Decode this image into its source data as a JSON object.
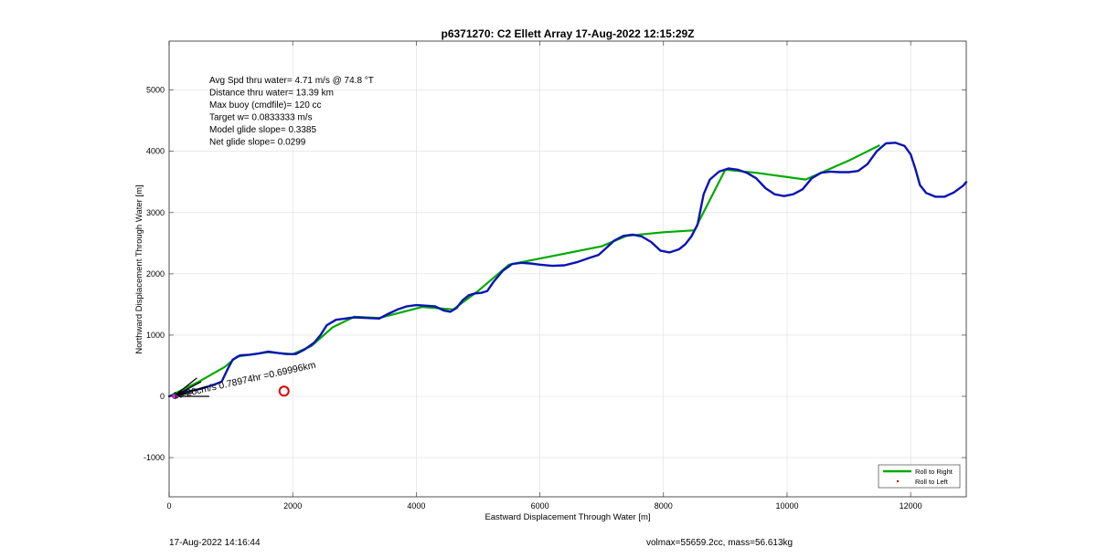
{
  "chart_data": {
    "type": "line",
    "title": "p6371270: C2 Ellett Array 17-Aug-2022 12:15:29Z",
    "xlabel": "Eastward Displacement Through Water [m]",
    "ylabel": "Northward Displacement Through Water [m]",
    "xlim": [
      0,
      12900
    ],
    "ylim": [
      -1640,
      5800
    ],
    "xticks": [
      0,
      2000,
      4000,
      6000,
      8000,
      10000,
      12000
    ],
    "yticks": [
      -1000,
      0,
      1000,
      2000,
      3000,
      4000,
      5000
    ],
    "grid": true,
    "legend": {
      "placement": "bottom-right",
      "entries": [
        {
          "label": "Roll to Right",
          "color": "#00aa00",
          "style": "line"
        },
        {
          "label": "Roll to Left",
          "color": "#cc0000",
          "style": "dot"
        }
      ]
    },
    "annotations": [
      "Avg Spd thru water=  4.71 m/s @  74.8 °T",
      "Distance thru water= 13.39 km",
      "Max buoy (cmdfile)= 120 cc",
      "Target w= 0.0833333 m/s",
      "Model glide slope= 0.3385",
      "Net glide slope= 0.0299"
    ],
    "vector_label": "15.26cm/s 0.78974hr =0.69996km",
    "target_circle": {
      "x": 1860,
      "y": 85,
      "color": "#dd0000"
    },
    "series": [
      {
        "name": "Roll to Right",
        "color": "#00aa00",
        "points": [
          [
            0,
            0
          ],
          [
            500,
            250
          ],
          [
            900,
            480
          ],
          [
            1100,
            650
          ],
          [
            1600,
            720
          ],
          [
            2000,
            690
          ],
          [
            2300,
            820
          ],
          [
            2650,
            1130
          ],
          [
            3000,
            1300
          ],
          [
            3400,
            1280
          ],
          [
            4100,
            1460
          ],
          [
            4600,
            1420
          ],
          [
            5000,
            1720
          ],
          [
            5500,
            2150
          ],
          [
            6000,
            2250
          ],
          [
            7000,
            2450
          ],
          [
            7400,
            2620
          ],
          [
            8000,
            2680
          ],
          [
            8500,
            2710
          ],
          [
            9000,
            3700
          ],
          [
            9500,
            3650
          ],
          [
            10300,
            3540
          ],
          [
            11000,
            3850
          ],
          [
            11500,
            4100
          ]
        ]
      },
      {
        "name": "Trajectory",
        "color": "#0a14b4",
        "points": [
          [
            0,
            0
          ],
          [
            200,
            60
          ],
          [
            500,
            120
          ],
          [
            750,
            200
          ],
          [
            850,
            240
          ],
          [
            950,
            450
          ],
          [
            1030,
            600
          ],
          [
            1150,
            670
          ],
          [
            1300,
            680
          ],
          [
            1450,
            700
          ],
          [
            1600,
            730
          ],
          [
            1750,
            710
          ],
          [
            1900,
            690
          ],
          [
            2050,
            690
          ],
          [
            2200,
            770
          ],
          [
            2350,
            880
          ],
          [
            2450,
            1000
          ],
          [
            2550,
            1160
          ],
          [
            2700,
            1250
          ],
          [
            2850,
            1270
          ],
          [
            3000,
            1290
          ],
          [
            3200,
            1280
          ],
          [
            3400,
            1270
          ],
          [
            3550,
            1350
          ],
          [
            3700,
            1420
          ],
          [
            3850,
            1470
          ],
          [
            4000,
            1490
          ],
          [
            4150,
            1480
          ],
          [
            4300,
            1470
          ],
          [
            4450,
            1400
          ],
          [
            4550,
            1380
          ],
          [
            4650,
            1440
          ],
          [
            4750,
            1570
          ],
          [
            4850,
            1650
          ],
          [
            4950,
            1680
          ],
          [
            5050,
            1690
          ],
          [
            5150,
            1720
          ],
          [
            5250,
            1870
          ],
          [
            5400,
            2050
          ],
          [
            5550,
            2160
          ],
          [
            5700,
            2180
          ],
          [
            5850,
            2170
          ],
          [
            6000,
            2150
          ],
          [
            6200,
            2130
          ],
          [
            6400,
            2140
          ],
          [
            6600,
            2190
          ],
          [
            6800,
            2260
          ],
          [
            6950,
            2310
          ],
          [
            7050,
            2400
          ],
          [
            7200,
            2540
          ],
          [
            7350,
            2620
          ],
          [
            7500,
            2640
          ],
          [
            7650,
            2610
          ],
          [
            7800,
            2520
          ],
          [
            7950,
            2380
          ],
          [
            8100,
            2350
          ],
          [
            8250,
            2400
          ],
          [
            8350,
            2480
          ],
          [
            8450,
            2610
          ],
          [
            8550,
            2800
          ],
          [
            8650,
            3300
          ],
          [
            8750,
            3540
          ],
          [
            8900,
            3670
          ],
          [
            9050,
            3720
          ],
          [
            9200,
            3700
          ],
          [
            9350,
            3650
          ],
          [
            9500,
            3560
          ],
          [
            9650,
            3400
          ],
          [
            9800,
            3300
          ],
          [
            9950,
            3270
          ],
          [
            10100,
            3300
          ],
          [
            10250,
            3380
          ],
          [
            10400,
            3560
          ],
          [
            10550,
            3650
          ],
          [
            10700,
            3670
          ],
          [
            10850,
            3660
          ],
          [
            11000,
            3660
          ],
          [
            11150,
            3680
          ],
          [
            11300,
            3790
          ],
          [
            11450,
            4000
          ],
          [
            11600,
            4130
          ],
          [
            11750,
            4140
          ],
          [
            11900,
            4090
          ],
          [
            12000,
            3950
          ],
          [
            12080,
            3700
          ],
          [
            12150,
            3450
          ],
          [
            12250,
            3320
          ],
          [
            12400,
            3260
          ],
          [
            12550,
            3260
          ],
          [
            12700,
            3330
          ],
          [
            12850,
            3440
          ],
          [
            12900,
            3500
          ]
        ]
      },
      {
        "name": "Vectors",
        "color": "#000000",
        "points": []
      }
    ]
  },
  "footer": {
    "left": "17-Aug-2022 14:16:44",
    "right": "volmax=55659.2cc, mass=56.613kg"
  }
}
